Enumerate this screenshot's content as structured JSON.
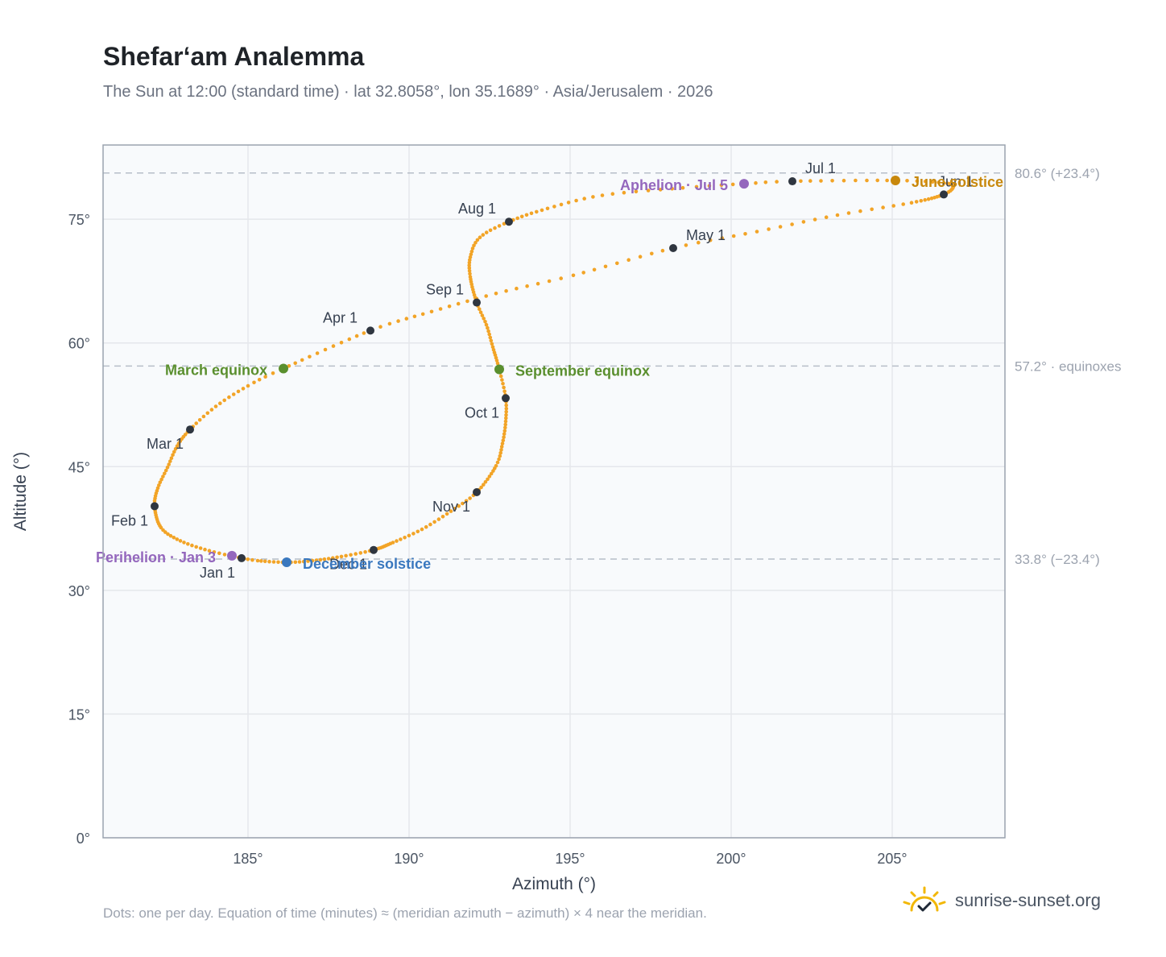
{
  "header": {
    "title": "Shefar‘am Analemma",
    "subtitle": "The Sun at 12:00 (standard time) · lat 32.8058°, lon 35.1689° · Asia/Jerusalem · 2026"
  },
  "footer": {
    "note": "Dots: one per day. Equation of time (minutes) ≈ (meridian azimuth − azimuth) × 4 near the meridian.",
    "brand": "sunrise-sunset.org",
    "brand_icon": "sun-icon"
  },
  "colors": {
    "curve": "#f2a427",
    "month_dot": "#2f3640",
    "equinox": "#5a8f2e",
    "june_solstice": "#c8880c",
    "december_solstice": "#3a78bf",
    "apsis": "#9467bd",
    "plot_bg": "#f8fafc",
    "grid": "#e5e7eb",
    "ref_line": "#b6bec8"
  },
  "chart_data": {
    "type": "scatter",
    "xlabel": "Azimuth (°)",
    "ylabel": "Altitude (°)",
    "xlim": [
      180.5,
      208.5
    ],
    "ylim": [
      0,
      84
    ],
    "xticks": [
      185,
      190,
      195,
      200,
      205
    ],
    "yticks": [
      0,
      15,
      30,
      45,
      60,
      75
    ],
    "x_tick_labels": [
      "185°",
      "190°",
      "195°",
      "200°",
      "205°"
    ],
    "y_tick_labels": [
      "0°",
      "15°",
      "30°",
      "45°",
      "60°",
      "75°"
    ],
    "grid": true,
    "series": [
      {
        "points": [
          {
            "date": "2026-01-01",
            "azimuth": 184.8,
            "altitude": 33.9
          },
          {
            "date": "2026-01-08",
            "azimuth": 183.8,
            "altitude": 34.8
          },
          {
            "date": "2026-01-15",
            "azimuth": 182.9,
            "altitude": 36.0
          },
          {
            "date": "2026-01-22",
            "azimuth": 182.3,
            "altitude": 37.6
          },
          {
            "date": "2026-02-01",
            "azimuth": 182.1,
            "altitude": 40.2
          },
          {
            "date": "2026-02-08",
            "azimuth": 182.2,
            "altitude": 42.4
          },
          {
            "date": "2026-02-15",
            "azimuth": 182.5,
            "altitude": 44.9
          },
          {
            "date": "2026-02-22",
            "azimuth": 182.8,
            "altitude": 47.5
          },
          {
            "date": "2026-03-01",
            "azimuth": 183.2,
            "altitude": 49.5
          },
          {
            "date": "2026-03-08",
            "azimuth": 184.0,
            "altitude": 52.3
          },
          {
            "date": "2026-03-15",
            "azimuth": 185.0,
            "altitude": 54.8
          },
          {
            "date": "2026-03-20",
            "azimuth": 186.1,
            "altitude": 56.9
          },
          {
            "date": "2026-04-01",
            "azimuth": 188.8,
            "altitude": 61.5
          },
          {
            "date": "2026-04-08",
            "azimuth": 190.7,
            "altitude": 63.8
          },
          {
            "date": "2026-04-15",
            "azimuth": 192.7,
            "altitude": 66.0
          },
          {
            "date": "2026-04-22",
            "azimuth": 195.1,
            "altitude": 68.2
          },
          {
            "date": "2026-05-01",
            "azimuth": 198.2,
            "altitude": 71.5
          },
          {
            "date": "2026-05-08",
            "azimuth": 200.8,
            "altitude": 73.5
          },
          {
            "date": "2026-05-15",
            "azimuth": 203.3,
            "altitude": 75.5
          },
          {
            "date": "2026-05-22",
            "azimuth": 205.6,
            "altitude": 77.0
          },
          {
            "date": "2026-06-01",
            "azimuth": 206.6,
            "altitude": 78.0
          },
          {
            "date": "2026-06-08",
            "azimuth": 206.9,
            "altitude": 79.0
          },
          {
            "date": "2026-06-15",
            "azimuth": 206.6,
            "altitude": 79.4
          },
          {
            "date": "2026-06-21",
            "azimuth": 205.1,
            "altitude": 79.7
          },
          {
            "date": "2026-07-01",
            "azimuth": 201.9,
            "altitude": 79.6
          },
          {
            "date": "2026-07-05",
            "azimuth": 200.4,
            "altitude": 79.3
          },
          {
            "date": "2026-07-10",
            "azimuth": 198.5,
            "altitude": 78.8
          },
          {
            "date": "2026-07-17",
            "azimuth": 196.0,
            "altitude": 77.9
          },
          {
            "date": "2026-07-24",
            "azimuth": 194.3,
            "altitude": 76.3
          },
          {
            "date": "2026-08-01",
            "azimuth": 193.1,
            "altitude": 74.7
          },
          {
            "date": "2026-08-08",
            "azimuth": 192.2,
            "altitude": 72.8
          },
          {
            "date": "2026-08-15",
            "azimuth": 191.9,
            "altitude": 70.4
          },
          {
            "date": "2026-08-22",
            "azimuth": 191.9,
            "altitude": 68.0
          },
          {
            "date": "2026-09-01",
            "azimuth": 192.1,
            "altitude": 64.9
          },
          {
            "date": "2026-09-08",
            "azimuth": 192.4,
            "altitude": 62.2
          },
          {
            "date": "2026-09-15",
            "azimuth": 192.6,
            "altitude": 59.5
          },
          {
            "date": "2026-09-23",
            "azimuth": 192.8,
            "altitude": 56.8
          },
          {
            "date": "2026-10-01",
            "azimuth": 193.0,
            "altitude": 53.3
          },
          {
            "date": "2026-10-08",
            "azimuth": 193.0,
            "altitude": 50.5
          },
          {
            "date": "2026-10-15",
            "azimuth": 192.9,
            "altitude": 47.8
          },
          {
            "date": "2026-10-22",
            "azimuth": 192.7,
            "altitude": 45.1
          },
          {
            "date": "2026-11-01",
            "azimuth": 192.1,
            "altitude": 41.9
          },
          {
            "date": "2026-11-08",
            "azimuth": 191.3,
            "altitude": 39.6
          },
          {
            "date": "2026-11-15",
            "azimuth": 190.4,
            "altitude": 37.4
          },
          {
            "date": "2026-11-22",
            "azimuth": 189.5,
            "altitude": 35.8
          },
          {
            "date": "2026-12-01",
            "azimuth": 188.9,
            "altitude": 34.9
          },
          {
            "date": "2026-12-08",
            "azimuth": 187.9,
            "altitude": 34.1
          },
          {
            "date": "2026-12-15",
            "azimuth": 187.0,
            "altitude": 33.6
          },
          {
            "date": "2026-12-21",
            "azimuth": 186.2,
            "altitude": 33.4
          },
          {
            "date": "2026-12-28",
            "azimuth": 185.3,
            "altitude": 33.6
          },
          {
            "date": "2027-01-01",
            "azimuth": 184.8,
            "altitude": 33.9
          }
        ]
      }
    ],
    "month_markers": [
      {
        "label": "Jan 1",
        "azimuth": 184.8,
        "altitude": 33.9,
        "anchor": "below-left"
      },
      {
        "label": "Feb 1",
        "azimuth": 182.1,
        "altitude": 40.2,
        "anchor": "below-left"
      },
      {
        "label": "Mar 1",
        "azimuth": 183.2,
        "altitude": 49.5,
        "anchor": "below-left"
      },
      {
        "label": "Apr 1",
        "azimuth": 188.8,
        "altitude": 61.5,
        "anchor": "above-left"
      },
      {
        "label": "May 1",
        "azimuth": 198.2,
        "altitude": 71.5,
        "anchor": "above-right"
      },
      {
        "label": "Jun 1",
        "azimuth": 206.6,
        "altitude": 78.0,
        "anchor": "above"
      },
      {
        "label": "Jul 1",
        "azimuth": 201.9,
        "altitude": 79.6,
        "anchor": "above-right"
      },
      {
        "label": "Aug 1",
        "azimuth": 193.1,
        "altitude": 74.7,
        "anchor": "above-left"
      },
      {
        "label": "Sep 1",
        "azimuth": 192.1,
        "altitude": 64.9,
        "anchor": "above-left"
      },
      {
        "label": "Oct 1",
        "azimuth": 193.0,
        "altitude": 53.3,
        "anchor": "below-left"
      },
      {
        "label": "Nov 1",
        "azimuth": 192.1,
        "altitude": 41.9,
        "anchor": "below-left"
      },
      {
        "label": "Dec 1",
        "azimuth": 188.9,
        "altitude": 34.9,
        "anchor": "below-left"
      }
    ],
    "events": [
      {
        "label": "March equinox",
        "azimuth": 186.1,
        "altitude": 56.9,
        "color_key": "equinox",
        "side": "left"
      },
      {
        "label": "September equinox",
        "azimuth": 192.8,
        "altitude": 56.8,
        "color_key": "equinox",
        "side": "right"
      },
      {
        "label": "June solstice",
        "azimuth": 205.1,
        "altitude": 79.7,
        "color_key": "june_solstice",
        "side": "right"
      },
      {
        "label": "December solstice",
        "azimuth": 186.2,
        "altitude": 33.4,
        "color_key": "december_solstice",
        "side": "right"
      },
      {
        "label": "Perihelion · Jan 3",
        "azimuth": 184.5,
        "altitude": 34.2,
        "color_key": "apsis",
        "side": "left"
      },
      {
        "label": "Aphelion · Jul 5",
        "azimuth": 200.4,
        "altitude": 79.3,
        "color_key": "apsis",
        "side": "left"
      }
    ],
    "reference_lines": [
      {
        "altitude": 80.6,
        "label": "80.6° (+23.4°)"
      },
      {
        "altitude": 57.2,
        "label": "57.2° · equinoxes"
      },
      {
        "altitude": 33.8,
        "label": "33.8° (−23.4°)"
      }
    ]
  }
}
